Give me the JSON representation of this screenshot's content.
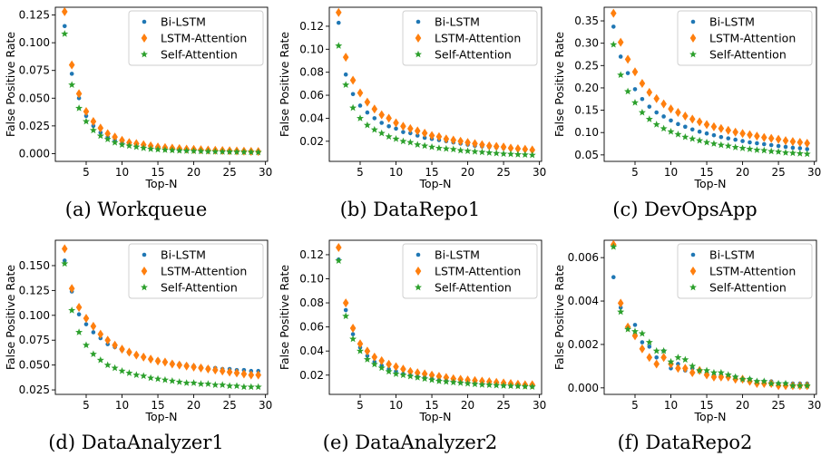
{
  "colors": {
    "Bi-LSTM": "#1f77b4",
    "LSTM-Attention": "#ff7f0e",
    "Self-Attention": "#2ca02c"
  },
  "chart_data": [
    {
      "type": "scatter",
      "caption": "(a) Workqueue",
      "xlabel": "Top-N",
      "ylabel": "False Positive Rate",
      "xlim": [
        0.7,
        30.3
      ],
      "xticks": [
        5,
        10,
        15,
        20,
        25,
        30
      ],
      "ylim": [
        -0.007,
        0.132
      ],
      "yticks": [
        0.0,
        0.025,
        0.05,
        0.075,
        0.1,
        0.125
      ],
      "ytick_decimals": 3,
      "legend": "top-right",
      "x": [
        2,
        3,
        4,
        5,
        6,
        7,
        8,
        9,
        10,
        11,
        12,
        13,
        14,
        15,
        16,
        17,
        18,
        19,
        20,
        21,
        22,
        23,
        24,
        25,
        26,
        27,
        28,
        29
      ],
      "series": [
        {
          "name": "Bi-LSTM",
          "marker": "dot",
          "values": [
            0.115,
            0.072,
            0.05,
            0.034,
            0.025,
            0.019,
            0.015,
            0.012,
            0.01,
            0.008,
            0.007,
            0.006,
            0.005,
            0.0045,
            0.004,
            0.0035,
            0.003,
            0.0028,
            0.0026,
            0.0024,
            0.0022,
            0.002,
            0.0019,
            0.0018,
            0.0017,
            0.0016,
            0.0015,
            0.0014
          ]
        },
        {
          "name": "LSTM-Attention",
          "marker": "diamond",
          "values": [
            0.128,
            0.08,
            0.054,
            0.038,
            0.029,
            0.023,
            0.018,
            0.015,
            0.012,
            0.01,
            0.009,
            0.008,
            0.007,
            0.006,
            0.0055,
            0.005,
            0.0045,
            0.004,
            0.0038,
            0.0035,
            0.0032,
            0.003,
            0.0028,
            0.0026,
            0.0024,
            0.0022,
            0.002,
            0.0019
          ]
        },
        {
          "name": "Self-Attention",
          "marker": "star",
          "values": [
            0.108,
            0.062,
            0.041,
            0.029,
            0.021,
            0.016,
            0.013,
            0.01,
            0.008,
            0.007,
            0.006,
            0.005,
            0.0042,
            0.0037,
            0.0033,
            0.003,
            0.0027,
            0.0025,
            0.0023,
            0.0021,
            0.0019,
            0.0018,
            0.0017,
            0.0016,
            0.0015,
            0.0014,
            0.0013,
            0.0012
          ]
        }
      ]
    },
    {
      "type": "scatter",
      "caption": "(b) DataRepo1",
      "xlabel": "Top-N",
      "ylabel": "False Positive Rate",
      "xlim": [
        0.7,
        30.3
      ],
      "xticks": [
        5,
        10,
        15,
        20,
        25,
        30
      ],
      "ylim": [
        0.0025,
        0.1365
      ],
      "yticks": [
        0.02,
        0.04,
        0.06,
        0.08,
        0.1,
        0.12
      ],
      "ytick_decimals": 2,
      "legend": "top-right",
      "x": [
        2,
        3,
        4,
        5,
        6,
        7,
        8,
        9,
        10,
        11,
        12,
        13,
        14,
        15,
        16,
        17,
        18,
        19,
        20,
        21,
        22,
        23,
        24,
        25,
        26,
        27,
        28,
        29
      ],
      "series": [
        {
          "name": "Bi-LSTM",
          "marker": "dot",
          "values": [
            0.123,
            0.078,
            0.061,
            0.051,
            0.045,
            0.04,
            0.036,
            0.033,
            0.031,
            0.028,
            0.027,
            0.025,
            0.023,
            0.022,
            0.021,
            0.02,
            0.019,
            0.018,
            0.017,
            0.016,
            0.0155,
            0.015,
            0.0145,
            0.014,
            0.0135,
            0.013,
            0.0125,
            0.012
          ]
        },
        {
          "name": "LSTM-Attention",
          "marker": "diamond",
          "values": [
            0.132,
            0.093,
            0.073,
            0.062,
            0.054,
            0.048,
            0.043,
            0.04,
            0.036,
            0.033,
            0.031,
            0.029,
            0.027,
            0.025,
            0.024,
            0.022,
            0.021,
            0.02,
            0.019,
            0.018,
            0.017,
            0.016,
            0.0155,
            0.015,
            0.014,
            0.0135,
            0.013,
            0.0125
          ]
        },
        {
          "name": "Self-Attention",
          "marker": "star",
          "values": [
            0.103,
            0.069,
            0.049,
            0.04,
            0.034,
            0.03,
            0.027,
            0.024,
            0.022,
            0.02,
            0.019,
            0.017,
            0.016,
            0.015,
            0.014,
            0.0135,
            0.013,
            0.012,
            0.0115,
            0.011,
            0.0105,
            0.01,
            0.0095,
            0.009,
            0.0088,
            0.0085,
            0.0083,
            0.008
          ]
        }
      ]
    },
    {
      "type": "scatter",
      "caption": "(c) DevOpsApp",
      "xlabel": "Top-N",
      "ylabel": "False Positive Rate",
      "xlim": [
        0.7,
        30.3
      ],
      "xticks": [
        5,
        10,
        15,
        20,
        25,
        30
      ],
      "ylim": [
        0.0355,
        0.3805
      ],
      "yticks": [
        0.05,
        0.1,
        0.15,
        0.2,
        0.25,
        0.3,
        0.35
      ],
      "ytick_decimals": 2,
      "legend": "top-right",
      "x": [
        2,
        3,
        4,
        5,
        6,
        7,
        8,
        9,
        10,
        11,
        12,
        13,
        14,
        15,
        16,
        17,
        18,
        19,
        20,
        21,
        22,
        23,
        24,
        25,
        26,
        27,
        28,
        29
      ],
      "series": [
        {
          "name": "Bi-LSTM",
          "marker": "dot",
          "values": [
            0.337,
            0.27,
            0.233,
            0.197,
            0.175,
            0.158,
            0.145,
            0.136,
            0.127,
            0.119,
            0.113,
            0.107,
            0.102,
            0.098,
            0.094,
            0.09,
            0.087,
            0.084,
            0.081,
            0.078,
            0.076,
            0.074,
            0.072,
            0.07,
            0.068,
            0.066,
            0.065,
            0.063
          ]
        },
        {
          "name": "LSTM-Attention",
          "marker": "diamond",
          "values": [
            0.367,
            0.302,
            0.264,
            0.236,
            0.21,
            0.19,
            0.176,
            0.164,
            0.153,
            0.145,
            0.137,
            0.13,
            0.124,
            0.118,
            0.113,
            0.109,
            0.105,
            0.101,
            0.098,
            0.095,
            0.092,
            0.089,
            0.087,
            0.085,
            0.082,
            0.08,
            0.078,
            0.076
          ]
        },
        {
          "name": "Self-Attention",
          "marker": "star",
          "values": [
            0.297,
            0.229,
            0.192,
            0.167,
            0.145,
            0.13,
            0.118,
            0.109,
            0.102,
            0.096,
            0.09,
            0.086,
            0.082,
            0.078,
            0.075,
            0.072,
            0.07,
            0.067,
            0.065,
            0.063,
            0.061,
            0.06,
            0.058,
            0.057,
            0.055,
            0.054,
            0.053,
            0.052
          ]
        }
      ]
    },
    {
      "type": "scatter",
      "caption": "(d) DataAnalyzer1",
      "xlabel": "Top-N",
      "ylabel": "False Positive Rate",
      "xlim": [
        0.7,
        30.3
      ],
      "xticks": [
        5,
        10,
        15,
        20,
        25,
        30
      ],
      "ylim": [
        0.0205,
        0.1755
      ],
      "yticks": [
        0.025,
        0.05,
        0.075,
        0.1,
        0.125,
        0.15
      ],
      "ytick_decimals": 3,
      "legend": "top-right",
      "x": [
        2,
        3,
        4,
        5,
        6,
        7,
        8,
        9,
        10,
        11,
        12,
        13,
        14,
        15,
        16,
        17,
        18,
        19,
        20,
        21,
        22,
        23,
        24,
        25,
        26,
        27,
        28,
        29
      ],
      "series": [
        {
          "name": "Bi-LSTM",
          "marker": "dot",
          "values": [
            0.155,
            0.124,
            0.101,
            0.091,
            0.083,
            0.077,
            0.071,
            0.068,
            0.065,
            0.062,
            0.06,
            0.058,
            0.056,
            0.055,
            0.053,
            0.052,
            0.051,
            0.05,
            0.049,
            0.048,
            0.047,
            0.047,
            0.046,
            0.046,
            0.045,
            0.045,
            0.044,
            0.044
          ]
        },
        {
          "name": "LSTM-Attention",
          "marker": "diamond",
          "values": [
            0.167,
            0.127,
            0.108,
            0.097,
            0.089,
            0.081,
            0.075,
            0.07,
            0.066,
            0.063,
            0.06,
            0.058,
            0.056,
            0.054,
            0.053,
            0.051,
            0.05,
            0.049,
            0.048,
            0.047,
            0.046,
            0.045,
            0.044,
            0.043,
            0.042,
            0.041,
            0.04,
            0.04
          ]
        },
        {
          "name": "Self-Attention",
          "marker": "star",
          "values": [
            0.152,
            0.105,
            0.083,
            0.07,
            0.061,
            0.055,
            0.05,
            0.047,
            0.044,
            0.042,
            0.04,
            0.039,
            0.037,
            0.036,
            0.035,
            0.034,
            0.033,
            0.032,
            0.032,
            0.031,
            0.031,
            0.03,
            0.03,
            0.029,
            0.029,
            0.028,
            0.028,
            0.028
          ]
        }
      ]
    },
    {
      "type": "scatter",
      "caption": "(e) DataAnalyzer2",
      "xlabel": "Top-N",
      "ylabel": "False Positive Rate",
      "xlim": [
        0.7,
        30.3
      ],
      "xticks": [
        5,
        10,
        15,
        20,
        25,
        30
      ],
      "ylim": [
        0.004,
        0.132
      ],
      "yticks": [
        0.02,
        0.04,
        0.06,
        0.08,
        0.1,
        0.12
      ],
      "ytick_decimals": 2,
      "legend": "top-right",
      "x": [
        2,
        3,
        4,
        5,
        6,
        7,
        8,
        9,
        10,
        11,
        12,
        13,
        14,
        15,
        16,
        17,
        18,
        19,
        20,
        21,
        22,
        23,
        24,
        25,
        26,
        27,
        28,
        29
      ],
      "series": [
        {
          "name": "Bi-LSTM",
          "marker": "dot",
          "values": [
            0.116,
            0.074,
            0.054,
            0.043,
            0.036,
            0.031,
            0.028,
            0.025,
            0.023,
            0.021,
            0.02,
            0.019,
            0.018,
            0.017,
            0.016,
            0.0155,
            0.015,
            0.0145,
            0.014,
            0.0135,
            0.013,
            0.0125,
            0.012,
            0.0115,
            0.0112,
            0.011,
            0.0108,
            0.0105
          ]
        },
        {
          "name": "LSTM-Attention",
          "marker": "diamond",
          "values": [
            0.126,
            0.08,
            0.059,
            0.046,
            0.04,
            0.035,
            0.032,
            0.029,
            0.027,
            0.025,
            0.023,
            0.022,
            0.021,
            0.02,
            0.019,
            0.018,
            0.017,
            0.0165,
            0.016,
            0.0155,
            0.015,
            0.0145,
            0.014,
            0.0135,
            0.013,
            0.0125,
            0.012,
            0.012
          ]
        },
        {
          "name": "Self-Attention",
          "marker": "star",
          "values": [
            0.115,
            0.069,
            0.05,
            0.04,
            0.033,
            0.029,
            0.026,
            0.023,
            0.021,
            0.02,
            0.019,
            0.018,
            0.017,
            0.016,
            0.015,
            0.0145,
            0.014,
            0.0135,
            0.013,
            0.0125,
            0.012,
            0.0118,
            0.0115,
            0.0112,
            0.011,
            0.0108,
            0.0105,
            0.0103
          ]
        }
      ]
    },
    {
      "type": "scatter",
      "caption": "(f) DataRepo2",
      "xlabel": "Top-N",
      "ylabel": "False Positive Rate",
      "xlim": [
        0.7,
        30.3
      ],
      "xticks": [
        5,
        10,
        15,
        20,
        25,
        30
      ],
      "ylim": [
        -0.0003,
        0.0068
      ],
      "yticks": [
        0.0,
        0.002,
        0.004,
        0.006
      ],
      "ytick_decimals": 3,
      "legend": "top-right",
      "x": [
        2,
        3,
        4,
        5,
        6,
        7,
        8,
        9,
        10,
        11,
        12,
        13,
        14,
        15,
        16,
        17,
        18,
        19,
        20,
        21,
        22,
        23,
        24,
        25,
        26,
        27,
        28,
        29
      ],
      "series": [
        {
          "name": "Bi-LSTM",
          "marker": "dot",
          "values": [
            0.0051,
            0.0037,
            0.0028,
            0.0029,
            0.0021,
            0.0019,
            0.0014,
            0.0017,
            0.0009,
            0.0011,
            0.0008,
            0.0009,
            0.0008,
            0.0007,
            0.0006,
            0.0006,
            0.0005,
            0.0005,
            0.0004,
            0.0004,
            0.0003,
            0.0003,
            0.0003,
            0.0002,
            0.0002,
            0.0002,
            0.0002,
            0.0002
          ]
        },
        {
          "name": "LSTM-Attention",
          "marker": "diamond",
          "values": [
            0.0066,
            0.0039,
            0.0028,
            0.0024,
            0.0018,
            0.0014,
            0.0011,
            0.0014,
            0.0011,
            0.0009,
            0.0009,
            0.0007,
            0.0008,
            0.0006,
            0.0005,
            0.0005,
            0.0005,
            0.0004,
            0.0004,
            0.0003,
            0.0002,
            0.0002,
            0.0002,
            0.0001,
            0.0001,
            0.0001,
            0.0001,
            0.0001
          ]
        },
        {
          "name": "Self-Attention",
          "marker": "star",
          "values": [
            0.0065,
            0.0035,
            0.0027,
            0.0026,
            0.0025,
            0.0021,
            0.0017,
            0.0017,
            0.0012,
            0.0014,
            0.0013,
            0.001,
            0.0008,
            0.0008,
            0.0007,
            0.0007,
            0.0006,
            0.0005,
            0.0004,
            0.0004,
            0.0003,
            0.0003,
            0.0002,
            0.0002,
            0.0002,
            0.0001,
            0.0001,
            0.0001
          ]
        }
      ]
    }
  ]
}
